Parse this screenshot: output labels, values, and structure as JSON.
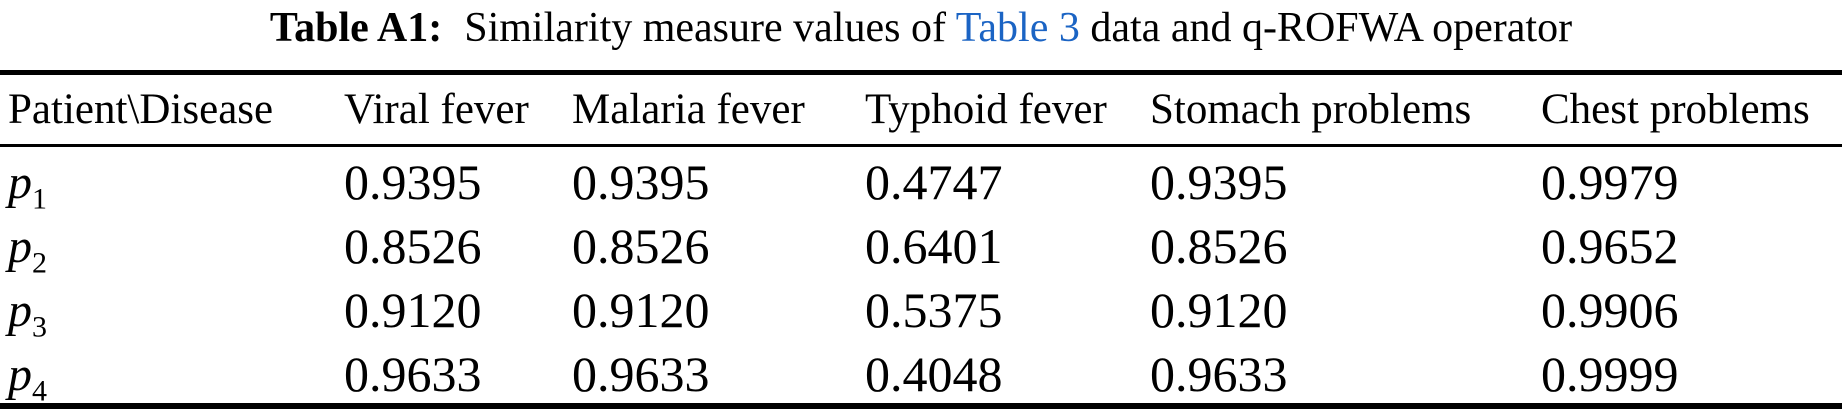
{
  "caption": {
    "label": "Table A1:",
    "text_before_link": "Similarity measure values of ",
    "link_text": "Table 3",
    "text_after_link": " data and q-ROFWA operator",
    "link_color": "#1b64c4"
  },
  "table": {
    "headers": [
      "Patient\\Disease",
      "Viral fever",
      "Malaria fever",
      "Typhoid fever",
      "Stomach problems",
      "Chest problems"
    ],
    "rows": [
      {
        "patient": "p",
        "patient_sub": "1",
        "values": [
          "0.9395",
          "0.9395",
          "0.4747",
          "0.9395",
          "0.9979"
        ]
      },
      {
        "patient": "p",
        "patient_sub": "2",
        "values": [
          "0.8526",
          "0.8526",
          "0.6401",
          "0.8526",
          "0.9652"
        ]
      },
      {
        "patient": "p",
        "patient_sub": "3",
        "values": [
          "0.9120",
          "0.9120",
          "0.5375",
          "0.9120",
          "0.9906"
        ]
      },
      {
        "patient": "p",
        "patient_sub": "4",
        "values": [
          "0.9633",
          "0.9633",
          "0.4048",
          "0.9633",
          "0.9999"
        ]
      }
    ]
  }
}
